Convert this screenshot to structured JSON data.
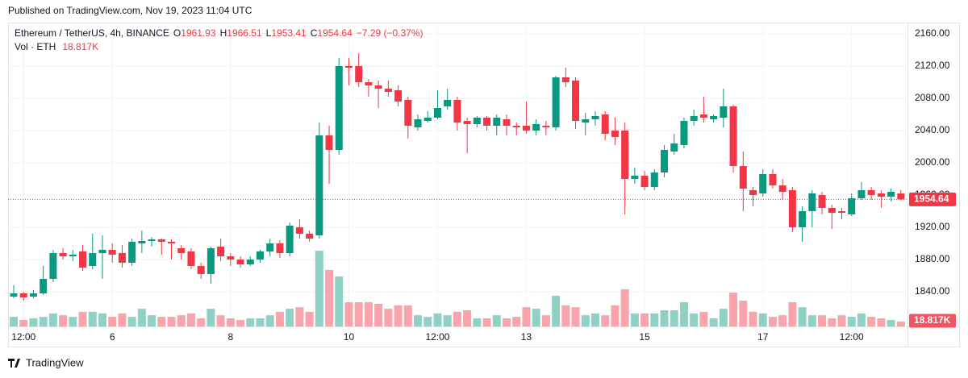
{
  "published": "Published on TradingView.com, Nov 19, 2023 11:04 UTC",
  "brand": "TradingView",
  "chart_data": {
    "type": "candlestick",
    "title": "Ethereum / TetherUS, 4h, BINANCE",
    "legend_keys": [
      "O",
      "H",
      "L",
      "C"
    ],
    "change": "−7.29 (−0.37%)",
    "up_color": "#089981",
    "down_color": "#f23645",
    "grid": true,
    "categories": [
      null,
      "12:00",
      null,
      null,
      null,
      null,
      null,
      null,
      null,
      null,
      "6",
      null,
      null,
      null,
      null,
      null,
      null,
      null,
      null,
      null,
      null,
      null,
      "8",
      null,
      null,
      null,
      null,
      null,
      null,
      null,
      null,
      null,
      null,
      null,
      "10",
      null,
      null,
      null,
      null,
      null,
      null,
      null,
      null,
      "12:00",
      null,
      null,
      null,
      null,
      null,
      null,
      null,
      null,
      "13",
      null,
      null,
      null,
      null,
      null,
      null,
      null,
      null,
      null,
      null,
      null,
      "15",
      null,
      null,
      null,
      null,
      null,
      null,
      null,
      null,
      null,
      null,
      null,
      "17",
      null,
      null,
      null,
      null,
      null,
      null,
      null,
      null,
      "12:00",
      null,
      null,
      null,
      null,
      null
    ],
    "open": [
      1834,
      1838,
      1834,
      1838,
      1856,
      1888,
      1884,
      1890,
      1872,
      1888,
      1892,
      1888,
      1876,
      1900,
      1903,
      1905,
      1902,
      1894,
      1890,
      1872,
      1862,
      1896,
      1884,
      1880,
      1874,
      1880,
      1890,
      1900,
      1888,
      1920,
      1912,
      1910,
      2034,
      2016,
      2120,
      2120,
      2100,
      2096,
      2092,
      2090,
      2078,
      2044,
      2052,
      2056,
      2070,
      2078,
      2052,
      2048,
      2056,
      2046,
      2054,
      2046,
      2046,
      2040,
      2046,
      2044,
      2106,
      2102,
      2050,
      2054,
      2060,
      2040,
      2040,
      1980,
      1984,
      1970,
      1988,
      2014,
      2022,
      2052,
      2060,
      2054,
      2056,
      2070,
      1996,
      1966,
      1962,
      1986,
      1972,
      1966,
      1920,
      1940,
      1960,
      1944,
      1940,
      1936,
      1956,
      1966,
      1962,
      1958,
      1961.93
    ],
    "high": [
      1848,
      1840,
      1842,
      1872,
      1892,
      1894,
      1892,
      1898,
      1912,
      1910,
      1900,
      1898,
      1906,
      1916,
      1908,
      1906,
      1905,
      1898,
      1894,
      1876,
      1896,
      1906,
      1888,
      1884,
      1884,
      1892,
      1906,
      1904,
      1926,
      1930,
      1916,
      2050,
      2046,
      2130,
      2130,
      2136,
      2104,
      2102,
      2102,
      2096,
      2082,
      2060,
      2064,
      2090,
      2092,
      2082,
      2056,
      2058,
      2058,
      2060,
      2060,
      2050,
      2076,
      2054,
      2052,
      2108,
      2118,
      2106,
      2062,
      2064,
      2064,
      2056,
      2050,
      1994,
      1990,
      1992,
      2022,
      2036,
      2056,
      2066,
      2082,
      2060,
      2092,
      2072,
      2014,
      1970,
      1992,
      1992,
      1980,
      1970,
      1946,
      1966,
      1964,
      1948,
      1944,
      1962,
      1976,
      1970,
      1966,
      1968,
      1966.51
    ],
    "low": [
      1832,
      1829,
      1832,
      1836,
      1852,
      1880,
      1878,
      1866,
      1868,
      1856,
      1876,
      1870,
      1872,
      1888,
      1896,
      1886,
      1880,
      1880,
      1868,
      1856,
      1850,
      1878,
      1872,
      1870,
      1872,
      1876,
      1884,
      1882,
      1884,
      1906,
      1902,
      1906,
      1974,
      2010,
      2096,
      2094,
      2082,
      2068,
      2082,
      2070,
      2030,
      2040,
      2050,
      2054,
      2066,
      2040,
      2012,
      2044,
      2040,
      2034,
      2034,
      2034,
      2036,
      2034,
      2034,
      2040,
      2094,
      2042,
      2034,
      2046,
      2028,
      2022,
      1936,
      1974,
      1966,
      1966,
      1982,
      2010,
      2018,
      2046,
      2050,
      2050,
      2044,
      1988,
      1940,
      1946,
      1958,
      1968,
      1954,
      1914,
      1902,
      1920,
      1936,
      1918,
      1930,
      1934,
      1954,
      1954,
      1944,
      1952,
      1953.41
    ],
    "close": [
      1838,
      1833,
      1838,
      1856,
      1888,
      1884,
      1886,
      1870,
      1888,
      1892,
      1886,
      1876,
      1902,
      1903,
      1905,
      1902,
      1900,
      1888,
      1872,
      1862,
      1894,
      1884,
      1880,
      1874,
      1880,
      1890,
      1900,
      1888,
      1922,
      1912,
      1906,
      2034,
      2016,
      2120,
      2118,
      2100,
      2096,
      2092,
      2088,
      2076,
      2046,
      2054,
      2056,
      2068,
      2078,
      2050,
      2048,
      2056,
      2046,
      2056,
      2046,
      2044,
      2040,
      2048,
      2044,
      2106,
      2100,
      2052,
      2054,
      2058,
      2036,
      2032,
      1980,
      1984,
      1970,
      1988,
      2016,
      2024,
      2052,
      2058,
      2056,
      2058,
      2070,
      1996,
      1968,
      1960,
      1986,
      1972,
      1964,
      1920,
      1940,
      1962,
      1944,
      1938,
      1938,
      1956,
      1966,
      1960,
      1958,
      1964,
      1954.64
    ],
    "volume": {
      "name": "Vol · ETH",
      "last_label": "18.817K",
      "values": [
        37,
        25,
        31,
        37,
        50,
        43,
        37,
        56,
        56,
        50,
        37,
        50,
        37,
        68,
        43,
        37,
        37,
        43,
        50,
        31,
        68,
        43,
        31,
        25,
        31,
        31,
        43,
        56,
        68,
        74,
        56,
        291,
        217,
        192,
        93,
        93,
        93,
        87,
        68,
        81,
        81,
        43,
        37,
        50,
        43,
        56,
        62,
        31,
        31,
        43,
        31,
        37,
        74,
        68,
        43,
        118,
        81,
        74,
        43,
        50,
        43,
        81,
        143,
        50,
        50,
        50,
        62,
        62,
        93,
        50,
        56,
        31,
        68,
        130,
        99,
        56,
        50,
        37,
        43,
        93,
        74,
        43,
        43,
        31,
        43,
        37,
        50,
        37,
        31,
        25,
        18.817
      ]
    },
    "ylim": [
      1797,
      2174
    ],
    "yticks": [
      {
        "value": 1840,
        "label": "1840.00"
      },
      {
        "value": 1880,
        "label": "1880.00"
      },
      {
        "value": 1920,
        "label": "1920.00"
      },
      {
        "value": 1960,
        "label": "1960.00"
      },
      {
        "value": 2000,
        "label": "2000.00"
      },
      {
        "value": 2040,
        "label": "2040.00"
      },
      {
        "value": 2080,
        "label": "2080.00"
      },
      {
        "value": 2120,
        "label": "2120.00"
      },
      {
        "value": 2160,
        "label": "2160.00"
      }
    ]
  }
}
